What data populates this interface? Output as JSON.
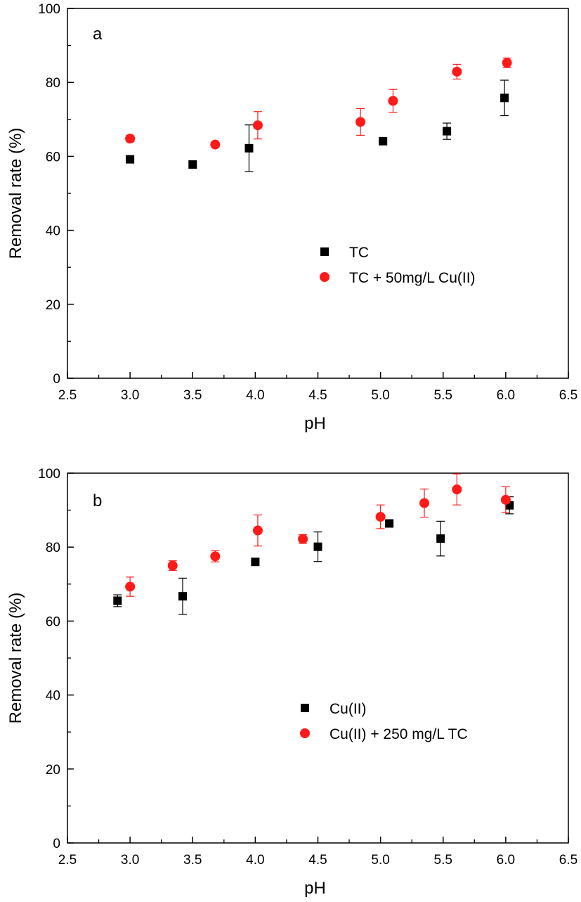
{
  "chart_data": [
    {
      "type": "scatter",
      "panel_label": "a",
      "xlabel": "pH",
      "ylabel": "Removal rate (%)",
      "xlim": [
        2.5,
        6.5
      ],
      "ylim": [
        0,
        100
      ],
      "x_ticks": [
        "2.5",
        "3.0",
        "3.5",
        "4.0",
        "4.5",
        "5.0",
        "5.5",
        "6.0",
        "6.5"
      ],
      "y_ticks": [
        "0",
        "20",
        "40",
        "60",
        "80",
        "100"
      ],
      "grid": false,
      "legend_position": "center-right",
      "series": [
        {
          "name": "TC",
          "marker": "square",
          "color": "#000000",
          "points": [
            {
              "x": 3.0,
              "y": 59.2,
              "err": 0
            },
            {
              "x": 3.5,
              "y": 57.8,
              "err": 0
            },
            {
              "x": 3.95,
              "y": 62.2,
              "err": 6.3
            },
            {
              "x": 5.02,
              "y": 64.1,
              "err": 0
            },
            {
              "x": 5.53,
              "y": 66.8,
              "err": 2.2
            },
            {
              "x": 5.99,
              "y": 75.8,
              "err": 4.8
            }
          ]
        },
        {
          "name": "TC + 50mg/L Cu(II)",
          "marker": "circle",
          "color": "#ff1a1a",
          "points": [
            {
              "x": 3.0,
              "y": 64.8,
              "err": 0.8
            },
            {
              "x": 3.68,
              "y": 63.2,
              "err": 0
            },
            {
              "x": 4.02,
              "y": 68.4,
              "err": 3.7
            },
            {
              "x": 4.84,
              "y": 69.3,
              "err": 3.6
            },
            {
              "x": 5.1,
              "y": 75.0,
              "err": 3.1
            },
            {
              "x": 5.61,
              "y": 82.9,
              "err": 2.0
            },
            {
              "x": 6.01,
              "y": 85.3,
              "err": 1.3
            }
          ]
        }
      ]
    },
    {
      "type": "scatter",
      "panel_label": "b",
      "xlabel": "pH",
      "ylabel": "Removal rate (%)",
      "xlim": [
        2.5,
        6.5
      ],
      "ylim": [
        0,
        100
      ],
      "x_ticks": [
        "2.5",
        "3.0",
        "3.5",
        "4.0",
        "4.5",
        "5.0",
        "5.5",
        "6.0",
        "6.5"
      ],
      "y_ticks": [
        "0",
        "20",
        "40",
        "60",
        "80",
        "100"
      ],
      "grid": false,
      "legend_position": "center-right",
      "series": [
        {
          "name": "Cu(II)",
          "marker": "square",
          "color": "#000000",
          "points": [
            {
              "x": 2.9,
              "y": 65.5,
              "err": 1.6
            },
            {
              "x": 3.42,
              "y": 66.7,
              "err": 4.9
            },
            {
              "x": 4.0,
              "y": 76.0,
              "err": 0
            },
            {
              "x": 4.5,
              "y": 80.1,
              "err": 4.0
            },
            {
              "x": 5.07,
              "y": 86.4,
              "err": 0
            },
            {
              "x": 5.48,
              "y": 82.3,
              "err": 4.7
            },
            {
              "x": 6.03,
              "y": 91.3,
              "err": 2.3
            }
          ]
        },
        {
          "name": "Cu(II) + 250 mg/L TC",
          "marker": "circle",
          "color": "#ff1a1a",
          "points": [
            {
              "x": 3.0,
              "y": 69.3,
              "err": 2.6
            },
            {
              "x": 3.34,
              "y": 75.0,
              "err": 1.3
            },
            {
              "x": 3.68,
              "y": 77.5,
              "err": 1.5
            },
            {
              "x": 4.02,
              "y": 84.5,
              "err": 4.2
            },
            {
              "x": 4.38,
              "y": 82.2,
              "err": 1.2
            },
            {
              "x": 5.0,
              "y": 88.2,
              "err": 3.2
            },
            {
              "x": 5.35,
              "y": 91.9,
              "err": 3.8
            },
            {
              "x": 5.61,
              "y": 95.6,
              "err": 4.2
            },
            {
              "x": 6.0,
              "y": 92.8,
              "err": 3.5
            }
          ]
        }
      ]
    }
  ]
}
